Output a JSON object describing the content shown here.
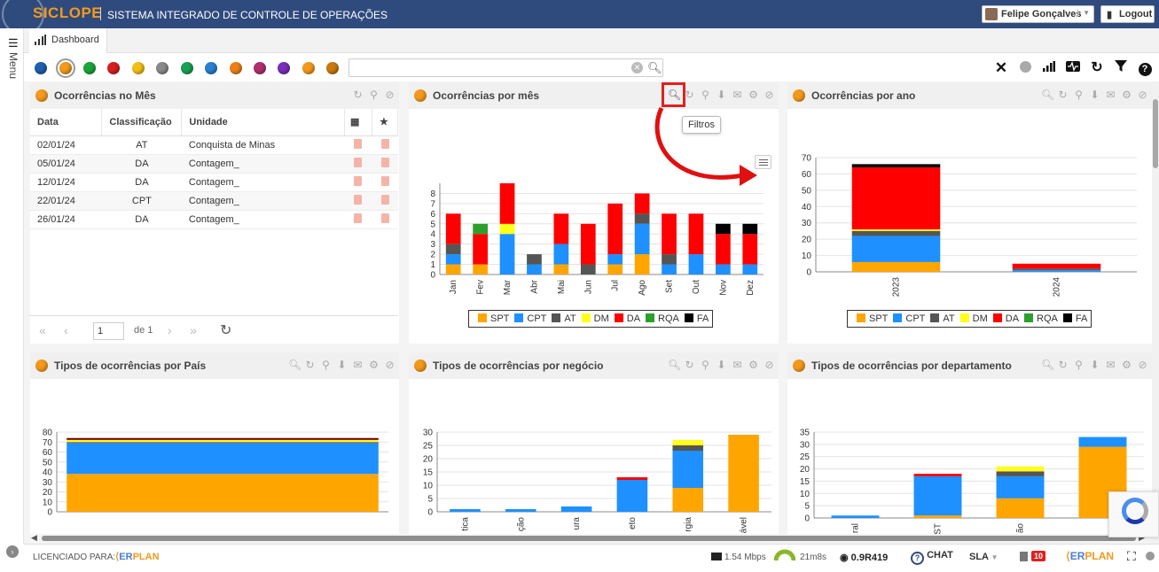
{
  "header": {
    "logo": "SICLOPE",
    "system_name": "SISTEMA INTEGRADO DE CONTROLE DE OPERAÇÕES",
    "user_name": "Felipe Gonçalves",
    "logout_label": "Logout"
  },
  "sidebar": {
    "menu_label": "Menu"
  },
  "tabs": [
    {
      "label": "Dashboard"
    }
  ],
  "toolbar": {
    "color_filters": [
      "#1f5fb0",
      "#f39a1c",
      "#19a53a",
      "#d81e1e",
      "#f2c014",
      "#8a8a8a",
      "#1aa055",
      "#2a7fd0",
      "#ef7f1a",
      "#b0306e",
      "#7a2fb8",
      "#f39a1c",
      "#c77a10"
    ],
    "selected_filter": 1,
    "search": {
      "value": "",
      "placeholder": ""
    },
    "icons": [
      "close-icon",
      "status-dot-icon",
      "bar-chart-icon",
      "pulse-icon",
      "refresh-icon",
      "filter-icon",
      "help-icon"
    ]
  },
  "colors": {
    "SPT": "#ffa500",
    "CPT": "#1e90ff",
    "AT": "#555555",
    "DM": "#ffff1a",
    "DA": "#ff0000",
    "RQA": "#2ca02c",
    "FA": "#000000"
  },
  "legend": [
    "SPT",
    "CPT",
    "AT",
    "DM",
    "DA",
    "RQA",
    "FA"
  ],
  "panels": {
    "occurrences_month": {
      "title": "Ocorrências no Mês",
      "columns": [
        "Data",
        "Classificação",
        "Unidade"
      ],
      "rows": [
        {
          "date": "02/01/24",
          "classification": "AT",
          "unit": "Conquista de Minas"
        },
        {
          "date": "05/01/24",
          "classification": "DA",
          "unit": "Contagem_"
        },
        {
          "date": "12/01/24",
          "classification": "DA",
          "unit": "Contagem_"
        },
        {
          "date": "22/01/24",
          "classification": "CPT",
          "unit": "Contagem_"
        },
        {
          "date": "26/01/24",
          "classification": "DA",
          "unit": "Contagem_"
        }
      ],
      "pager": {
        "page": "1",
        "of_label": "de 1"
      }
    },
    "by_month": {
      "title": "Ocorrências por mês",
      "tooltip": "Filtros"
    },
    "by_year": {
      "title": "Ocorrências por ano"
    },
    "by_country": {
      "title": "Tipos de ocorrências por País"
    },
    "by_business": {
      "title": "Tipos de ocorrências por negócio"
    },
    "by_department": {
      "title": "Tipos de ocorrências por departamento"
    }
  },
  "chart_data": [
    {
      "type": "bar",
      "stacked": true,
      "title": "Ocorrências por mês",
      "categories": [
        "Jan",
        "Fev",
        "Mar",
        "Abr",
        "Mai",
        "Jun",
        "Jul",
        "Ago",
        "Set",
        "Out",
        "Nov",
        "Dez"
      ],
      "ylim": [
        0,
        9
      ],
      "yticks": [
        0,
        1,
        2,
        3,
        4,
        5,
        6,
        7,
        8
      ],
      "series": [
        {
          "name": "SPT",
          "values": [
            1,
            1,
            0,
            0,
            1,
            0,
            1,
            2,
            0,
            0,
            0,
            0
          ]
        },
        {
          "name": "CPT",
          "values": [
            1,
            0,
            4,
            1,
            2,
            0,
            1,
            3,
            1,
            2,
            1,
            1
          ]
        },
        {
          "name": "AT",
          "values": [
            1,
            0,
            0,
            1,
            0,
            1,
            0,
            1,
            1,
            0,
            0,
            0
          ]
        },
        {
          "name": "DM",
          "values": [
            0,
            0,
            1,
            0,
            0,
            0,
            0,
            0,
            0,
            0,
            0,
            0
          ]
        },
        {
          "name": "DA",
          "values": [
            3,
            3,
            4,
            0,
            3,
            4,
            5,
            2,
            4,
            4,
            3,
            3
          ]
        },
        {
          "name": "RQA",
          "values": [
            0,
            1,
            0,
            0,
            0,
            0,
            0,
            0,
            0,
            0,
            0,
            0
          ]
        },
        {
          "name": "FA",
          "values": [
            0,
            0,
            0,
            0,
            0,
            0,
            0,
            0,
            0,
            0,
            1,
            1
          ]
        }
      ]
    },
    {
      "type": "bar",
      "stacked": true,
      "title": "Ocorrências por ano",
      "categories": [
        "2023",
        "2024"
      ],
      "ylim": [
        0,
        70
      ],
      "yticks": [
        0,
        10,
        20,
        30,
        40,
        50,
        60,
        70
      ],
      "series": [
        {
          "name": "SPT",
          "values": [
            6,
            0
          ]
        },
        {
          "name": "CPT",
          "values": [
            16,
            1
          ]
        },
        {
          "name": "AT",
          "values": [
            3,
            1
          ]
        },
        {
          "name": "DM",
          "values": [
            1,
            0
          ]
        },
        {
          "name": "DA",
          "values": [
            38,
            3
          ]
        },
        {
          "name": "RQA",
          "values": [
            0,
            0
          ]
        },
        {
          "name": "FA",
          "values": [
            2,
            0
          ]
        }
      ]
    },
    {
      "type": "bar",
      "stacked": true,
      "title": "Tipos de ocorrências por País",
      "categories": [
        ""
      ],
      "ylim": [
        0,
        80
      ],
      "yticks": [
        0,
        10,
        20,
        30,
        40,
        50,
        60,
        70,
        80
      ],
      "series": [
        {
          "name": "SPT",
          "values": [
            38
          ]
        },
        {
          "name": "CPT",
          "values": [
            31
          ]
        },
        {
          "name": "AT",
          "values": [
            1
          ]
        },
        {
          "name": "DM",
          "values": [
            2
          ]
        },
        {
          "name": "DA",
          "values": [
            1
          ]
        },
        {
          "name": "RQA",
          "values": [
            0
          ]
        },
        {
          "name": "FA",
          "values": [
            1
          ]
        }
      ]
    },
    {
      "type": "bar",
      "stacked": true,
      "title": "Tipos de ocorrências por negócio",
      "categories": [
        "tica",
        "ção",
        "ura",
        "eto",
        "rgia",
        "ável"
      ],
      "ylim": [
        0,
        30
      ],
      "yticks": [
        0,
        5,
        10,
        15,
        20,
        25,
        30
      ],
      "series": [
        {
          "name": "SPT",
          "values": [
            0,
            0,
            0,
            0,
            9,
            29
          ]
        },
        {
          "name": "CPT",
          "values": [
            1,
            1,
            2,
            12,
            14,
            0
          ]
        },
        {
          "name": "AT",
          "values": [
            0,
            0,
            0,
            0,
            2,
            0
          ]
        },
        {
          "name": "DM",
          "values": [
            0,
            0,
            0,
            0,
            2,
            0
          ]
        },
        {
          "name": "DA",
          "values": [
            0,
            0,
            0,
            1,
            0,
            0
          ]
        },
        {
          "name": "RQA",
          "values": [
            0,
            0,
            0,
            0,
            0,
            0
          ]
        },
        {
          "name": "FA",
          "values": [
            0,
            0,
            0,
            0,
            0,
            0
          ]
        }
      ]
    },
    {
      "type": "bar",
      "stacked": true,
      "title": "Tipos de ocorrências por departamento",
      "categories": [
        "ral",
        "ST",
        "ão",
        ""
      ],
      "ylim": [
        0,
        35
      ],
      "yticks": [
        0,
        5,
        10,
        15,
        20,
        25,
        30,
        35
      ],
      "series": [
        {
          "name": "SPT",
          "values": [
            0,
            1,
            8,
            29
          ]
        },
        {
          "name": "CPT",
          "values": [
            1,
            16,
            9,
            4
          ]
        },
        {
          "name": "AT",
          "values": [
            0,
            0,
            2,
            0
          ]
        },
        {
          "name": "DM",
          "values": [
            0,
            0,
            2,
            0
          ]
        },
        {
          "name": "DA",
          "values": [
            0,
            1,
            0,
            0
          ]
        },
        {
          "name": "RQA",
          "values": [
            0,
            0,
            0,
            0
          ]
        },
        {
          "name": "FA",
          "values": [
            0,
            0,
            0,
            0
          ]
        }
      ]
    }
  ],
  "footer": {
    "licensed_label": "LICENCIADO PARA:",
    "erplan_a": "ER",
    "erplan_b": "PLAN",
    "speed": "1.54 Mbps",
    "latency": "21m8s",
    "version": "0.9R419",
    "chat_label": "CHAT",
    "sla_label": "SLA",
    "notification_count": "10"
  }
}
